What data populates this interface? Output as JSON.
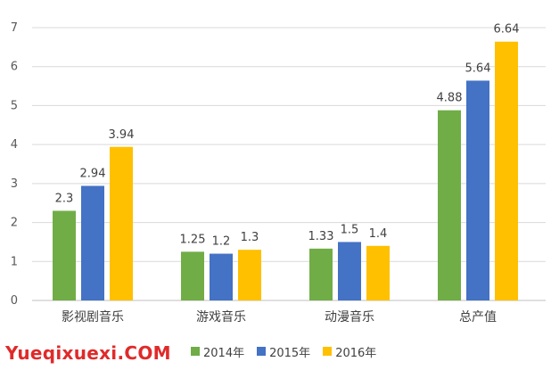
{
  "chart_data": {
    "type": "bar",
    "categories": [
      "影视剧音乐",
      "游戏音乐",
      "动漫音乐",
      "总产值"
    ],
    "series": [
      {
        "name": "2014年",
        "values": [
          2.3,
          1.25,
          1.33,
          4.88
        ],
        "labels": [
          "2.3",
          "1.25",
          "1.33",
          "4.88"
        ],
        "color": "#70ad47"
      },
      {
        "name": "2015年",
        "values": [
          2.94,
          1.2,
          1.5,
          5.64
        ],
        "labels": [
          "2.94",
          "1.2",
          "1.5",
          "5.64"
        ],
        "color": "#4472c4"
      },
      {
        "name": "2016年",
        "values": [
          3.94,
          1.3,
          1.4,
          6.64
        ],
        "labels": [
          "3.94",
          "1.3",
          "1.4",
          "6.64"
        ],
        "color": "#ffc000"
      }
    ],
    "ylim": [
      0,
      7
    ],
    "yticks": [
      "0",
      "1",
      "2",
      "3",
      "4",
      "5",
      "6",
      "7"
    ],
    "grid": true,
    "legend_position": "bottom"
  },
  "watermark": "Yueqixuexi.COM"
}
